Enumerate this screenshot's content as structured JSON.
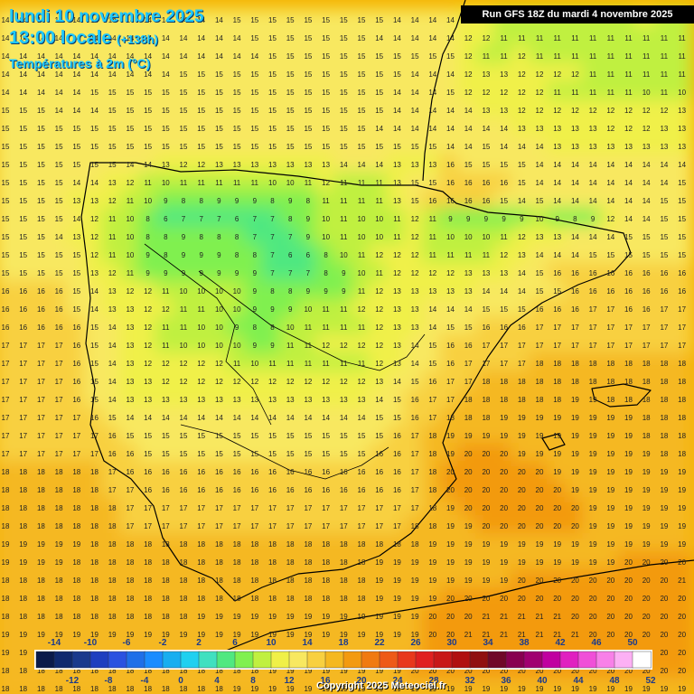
{
  "header": {
    "date": "lundi 10 novembre 2025",
    "time": "13:00 locale",
    "offset": "(+138h)",
    "parameter": "Températures à 2m (°C)"
  },
  "run_info": "Run GFS 18Z du mardi 4 novembre 2025",
  "copyright": "Copyright 2025 Meteociel.fr",
  "legend": {
    "values": [
      -14,
      -12,
      -10,
      -8,
      -6,
      -4,
      -2,
      0,
      2,
      4,
      6,
      8,
      10,
      12,
      14,
      16,
      18,
      20,
      22,
      24,
      26,
      28,
      30,
      32,
      34,
      36,
      38,
      40,
      42,
      44,
      46,
      48,
      50,
      52
    ],
    "colors": [
      "#0b1b4a",
      "#102a6e",
      "#1a3a8c",
      "#1f3fbf",
      "#2a52e0",
      "#1f6fe8",
      "#1a8cff",
      "#18aef0",
      "#20d0f0",
      "#40e0c0",
      "#50e880",
      "#80f050",
      "#c0f040",
      "#f0f048",
      "#f8e860",
      "#f8d040",
      "#f5b820",
      "#f39a10",
      "#f07a10",
      "#ee5a18",
      "#e8381c",
      "#e02020",
      "#c81818",
      "#b01010",
      "#901010",
      "#700828",
      "#880050",
      "#a00070",
      "#c000a0",
      "#e020c0",
      "#f050d8",
      "#f880e8",
      "#fcb0f4",
      "#ffffff"
    ]
  },
  "icons": [
    "coastline-overlay",
    "temperature-grid"
  ],
  "map_values": {
    "grid_spacing_note": "Grid of integer temperatures in °C as printed across the map",
    "rows": [
      "14 14 14 14 14 14 14 14 14 14 14 14 14 15 15 15 15 15 15 15 15 15 14 14 14 14 13 12 11 11 11 11 11 11 11 11 12 11 11",
      "14 14 14 14 14 14 14 14 14 14 14 14 14 14 15 15 15 15 15 15 15 14 14 14 14 14 12 12 11 11 11 11 11 11 11 11 11 11 11",
      "14 14 14 14 14 14 14 14 14 14 14 14 14 14 14 15 15 15 15 15 15 15 15 15 15 15 12 11 11 12 11 11 11 11 11 11 11 11 11",
      "14 14 14 14 14 14 14 14 14 14 15 15 15 15 15 15 15 15 15 15 15 15 15 14 14 14 12 13 13 12 12 12 12 11 11 11 11 11 11",
      "14 14 14 14 14 15 15 15 15 15 15 15 15 15 15 15 15 15 15 15 15 15 14 14 14 15 12 12 12 12 12 11 11 11 11 11 10 11 10",
      "15 15 15 14 14 14 15 15 15 15 15 15 15 15 15 15 15 15 15 15 15 15 14 14 14 14 14 13 13 12 12 12 12 12 12 12 12 12 13",
      "15 15 15 15 15 15 15 15 15 15 15 15 15 15 15 15 15 15 15 15 15 14 14 14 14 14 14 14 14 13 13 13 13 13 12 12 12 13 13",
      "15 15 15 15 15 15 15 15 15 15 15 15 15 15 15 15 15 15 15 15 15 15 15 15 15 14 14 15 14 14 14 13 13 13 13 13 13 13 13",
      "15 15 15 15 15 15 15 14 14 13 12 12 13 13 13 13 13 13 13 14 14 14 13 13 13 16 15 15 15 15 14 14 14 14 14 14 14 14 14",
      "15 15 15 15 14 14 13 12 11 10 11 11 11 11 11 10 10 11 12 11 11 11 13 15 15 16 16 16 16 15 14 14 14 14 14 14 14 14 15",
      "15 15 15 15 13 13 12 11 10 9 8 8 9 9 9 8 9 8 11 11 11 11 13 15 16 16 16 16 15 14 15 14 14 14 14 14 14 15 15",
      "15 15 15 15 14 12 11 10 8 6 7 7 7 6 7 7 8 9 10 11 10 10 11 12 11 9 9 9 9 9 10 9 8 9 12 14 14 15 15",
      "15 15 15 14 13 12 11 10 8 8 9 8 8 8 7 7 7 9 10 11 10 10 11 12 11 10 10 10 11 12 13 13 14 14 14 15 15 15 15",
      "15 15 15 15 15 12 11 10 9 8 9 9 9 8 8 7 6 6 8 10 11 12 12 12 11 11 11 11 12 13 14 14 14 15 15 15 15 15 15",
      "15 15 15 15 15 13 12 11 9 9 9 9 9 9 9 7 7 7 8 9 10 11 12 12 12 12 13 13 13 14 15 16 16 16 16 16 16 16 16",
      "16 16 16 16 15 14 13 12 12 11 10 10 10 10 9 8 8 9 9 9 11 12 13 13 13 13 13 14 14 14 15 15 16 16 16 16 16 16 16",
      "16 16 16 16 15 14 13 13 12 12 11 11 10 10 9 9 9 10 11 11 12 12 13 13 14 14 14 15 15 15 16 16 16 17 17 16 16 17 17",
      "16 16 16 16 16 15 14 13 12 11 11 10 10 9 8 8 10 11 11 11 11 12 13 13 14 15 15 16 16 16 17 17 17 17 17 17 17 17 17",
      "17 17 17 17 16 15 14 13 12 11 10 10 10 10 9 9 11 11 12 12 12 12 13 14 15 16 16 17 17 17 17 17 17 17 17 17 17 17 17",
      "17 17 17 17 16 15 14 13 12 12 12 12 12 11 10 11 11 11 11 11 11 12 13 14 15 16 17 17 17 17 18 18 18 18 18 18 18 18 18",
      "17 17 17 17 16 15 14 13 13 12 12 12 12 12 12 12 12 12 12 12 12 13 14 15 16 17 17 18 18 18 18 18 18 18 18 18 18 18 18",
      "17 17 17 17 16 15 14 13 13 13 13 13 13 13 13 13 13 13 13 13 13 14 15 16 17 17 18 18 18 18 18 18 19 19 18 18 18 18 18",
      "17 17 17 17 17 16 15 14 14 14 14 14 14 14 14 14 14 14 14 14 14 15 15 16 17 18 18 18 19 19 19 19 19 19 19 19 18 18 18",
      "17 17 17 17 17 17 16 15 15 15 15 15 15 15 15 15 15 15 15 15 15 15 16 17 18 19 19 19 19 19 19 19 19 19 19 19 18 18 18",
      "17 17 17 17 17 17 16 16 15 15 15 15 15 15 15 15 15 15 15 15 15 16 16 17 18 19 20 20 20 19 19 19 19 19 19 19 19 18 18",
      "18 18 18 18 18 18 17 16 16 16 16 16 16 16 16 16 16 16 16 16 16 16 16 17 18 20 20 20 20 20 20 19 19 19 19 19 19 19 19",
      "18 18 18 18 18 18 17 17 16 16 16 16 16 16 16 16 16 16 16 16 16 16 16 17 18 20 20 20 20 20 20 20 19 19 19 19 19 19 19",
      "18 18 18 18 18 18 18 17 17 17 17 17 17 17 17 17 17 17 17 17 17 17 17 17 18 19 20 20 20 20 20 20 20 19 19 19 19 19 19",
      "18 18 18 18 18 18 18 17 17 17 17 17 17 17 17 17 17 17 17 17 17 17 17 18 18 19 19 20 20 20 20 20 20 19 19 19 19 19 19",
      "19 19 19 19 19 18 18 18 18 18 18 18 18 18 18 18 18 18 18 18 18 18 18 18 19 19 19 19 19 19 19 19 19 19 19 19 19 19 19",
      "19 19 19 19 18 18 18 18 18 18 18 18 18 18 18 18 18 18 18 18 18 19 19 19 19 19 19 19 19 19 19 19 19 19 19 20 20 20 20",
      "18 18 18 18 18 18 18 18 18 18 18 18 18 18 18 18 18 18 18 18 18 19 19 19 19 19 19 19 19 20 20 20 20 20 20 20 20 20 21",
      "18 18 18 18 18 18 18 18 18 18 18 18 18 18 18 18 18 18 18 18 18 19 19 19 19 20 20 20 20 20 20 20 20 20 20 20 20 20 20",
      "18 18 18 18 18 18 18 18 18 18 18 19 19 19 19 19 19 19 19 19 19 19 19 19 20 20 20 21 21 21 21 21 20 20 20 20 20 20 20",
      "19 19 19 19 19 19 19 19 19 19 19 19 19 19 19 19 19 19 19 19 19 19 19 19 20 20 21 21 21 21 21 21 21 20 20 20 20 20 20",
      "19 19 19 19 19 19 19 19 19 19 19 19 19 19 19 19 19 19 19 19 19 19 19 19 20 20 21 21 21 21 21 21 21 20 20 20 20 20 20",
      "18 18 18 18 18 18 18 18 18 18 18 18 18 18 18 19 19 19 19 19 19 19 19 20 20 20 20 20 20 20 20 20 20 20 20 20 20 20 20",
      "18 18 18 18 18 18 18 18 18 18 18 18 18 19 19 19 19 19 19 19 19 19 19 19 19 19 19 19 19 19 19 19 19 19 19 19 19 19 19"
    ]
  }
}
